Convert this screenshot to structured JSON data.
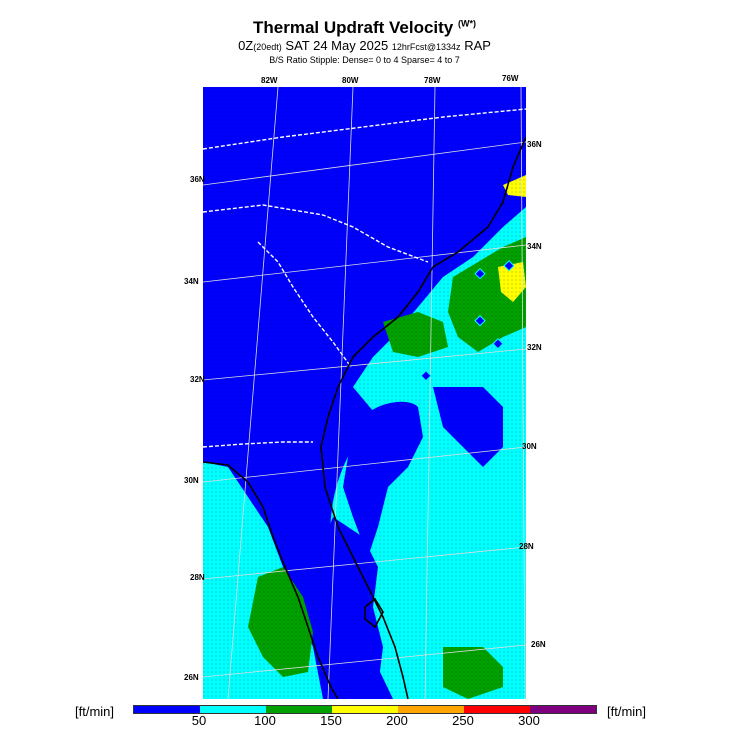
{
  "title": {
    "main": "Thermal Updraft Velocity",
    "units": "(W*)"
  },
  "subtitle": {
    "prefix": "0Z",
    "local": "(20edt)",
    "date": "SAT 24 May 2025",
    "forecast": "12hrFcst@1334z",
    "model": "RAP"
  },
  "stipple_note": "B/S Ratio Stipple: Dense= 0 to 4 Sparse= 4 to 7",
  "longitude_labels": [
    "82W",
    "80W",
    "78W",
    "76W"
  ],
  "latitude_labels_left": [
    "36N",
    "34N",
    "32N",
    "30N",
    "28N",
    "26N"
  ],
  "latitude_labels_right": [
    "36N",
    "34N",
    "32N",
    "30N",
    "28N",
    "26N"
  ],
  "legend": {
    "unit_left": "[ft/min]",
    "unit_right": "[ft/min]",
    "ticks": [
      "50",
      "100",
      "150",
      "200",
      "250",
      "300"
    ],
    "colors": [
      "#0000ff",
      "#00ffff",
      "#00a000",
      "#ffff00",
      "#ffa500",
      "#ff0000",
      "#7f007f"
    ]
  },
  "colors": {
    "low": "#0000ff",
    "band1": "#00ffff",
    "band2": "#00a000",
    "band3": "#ffff00"
  }
}
